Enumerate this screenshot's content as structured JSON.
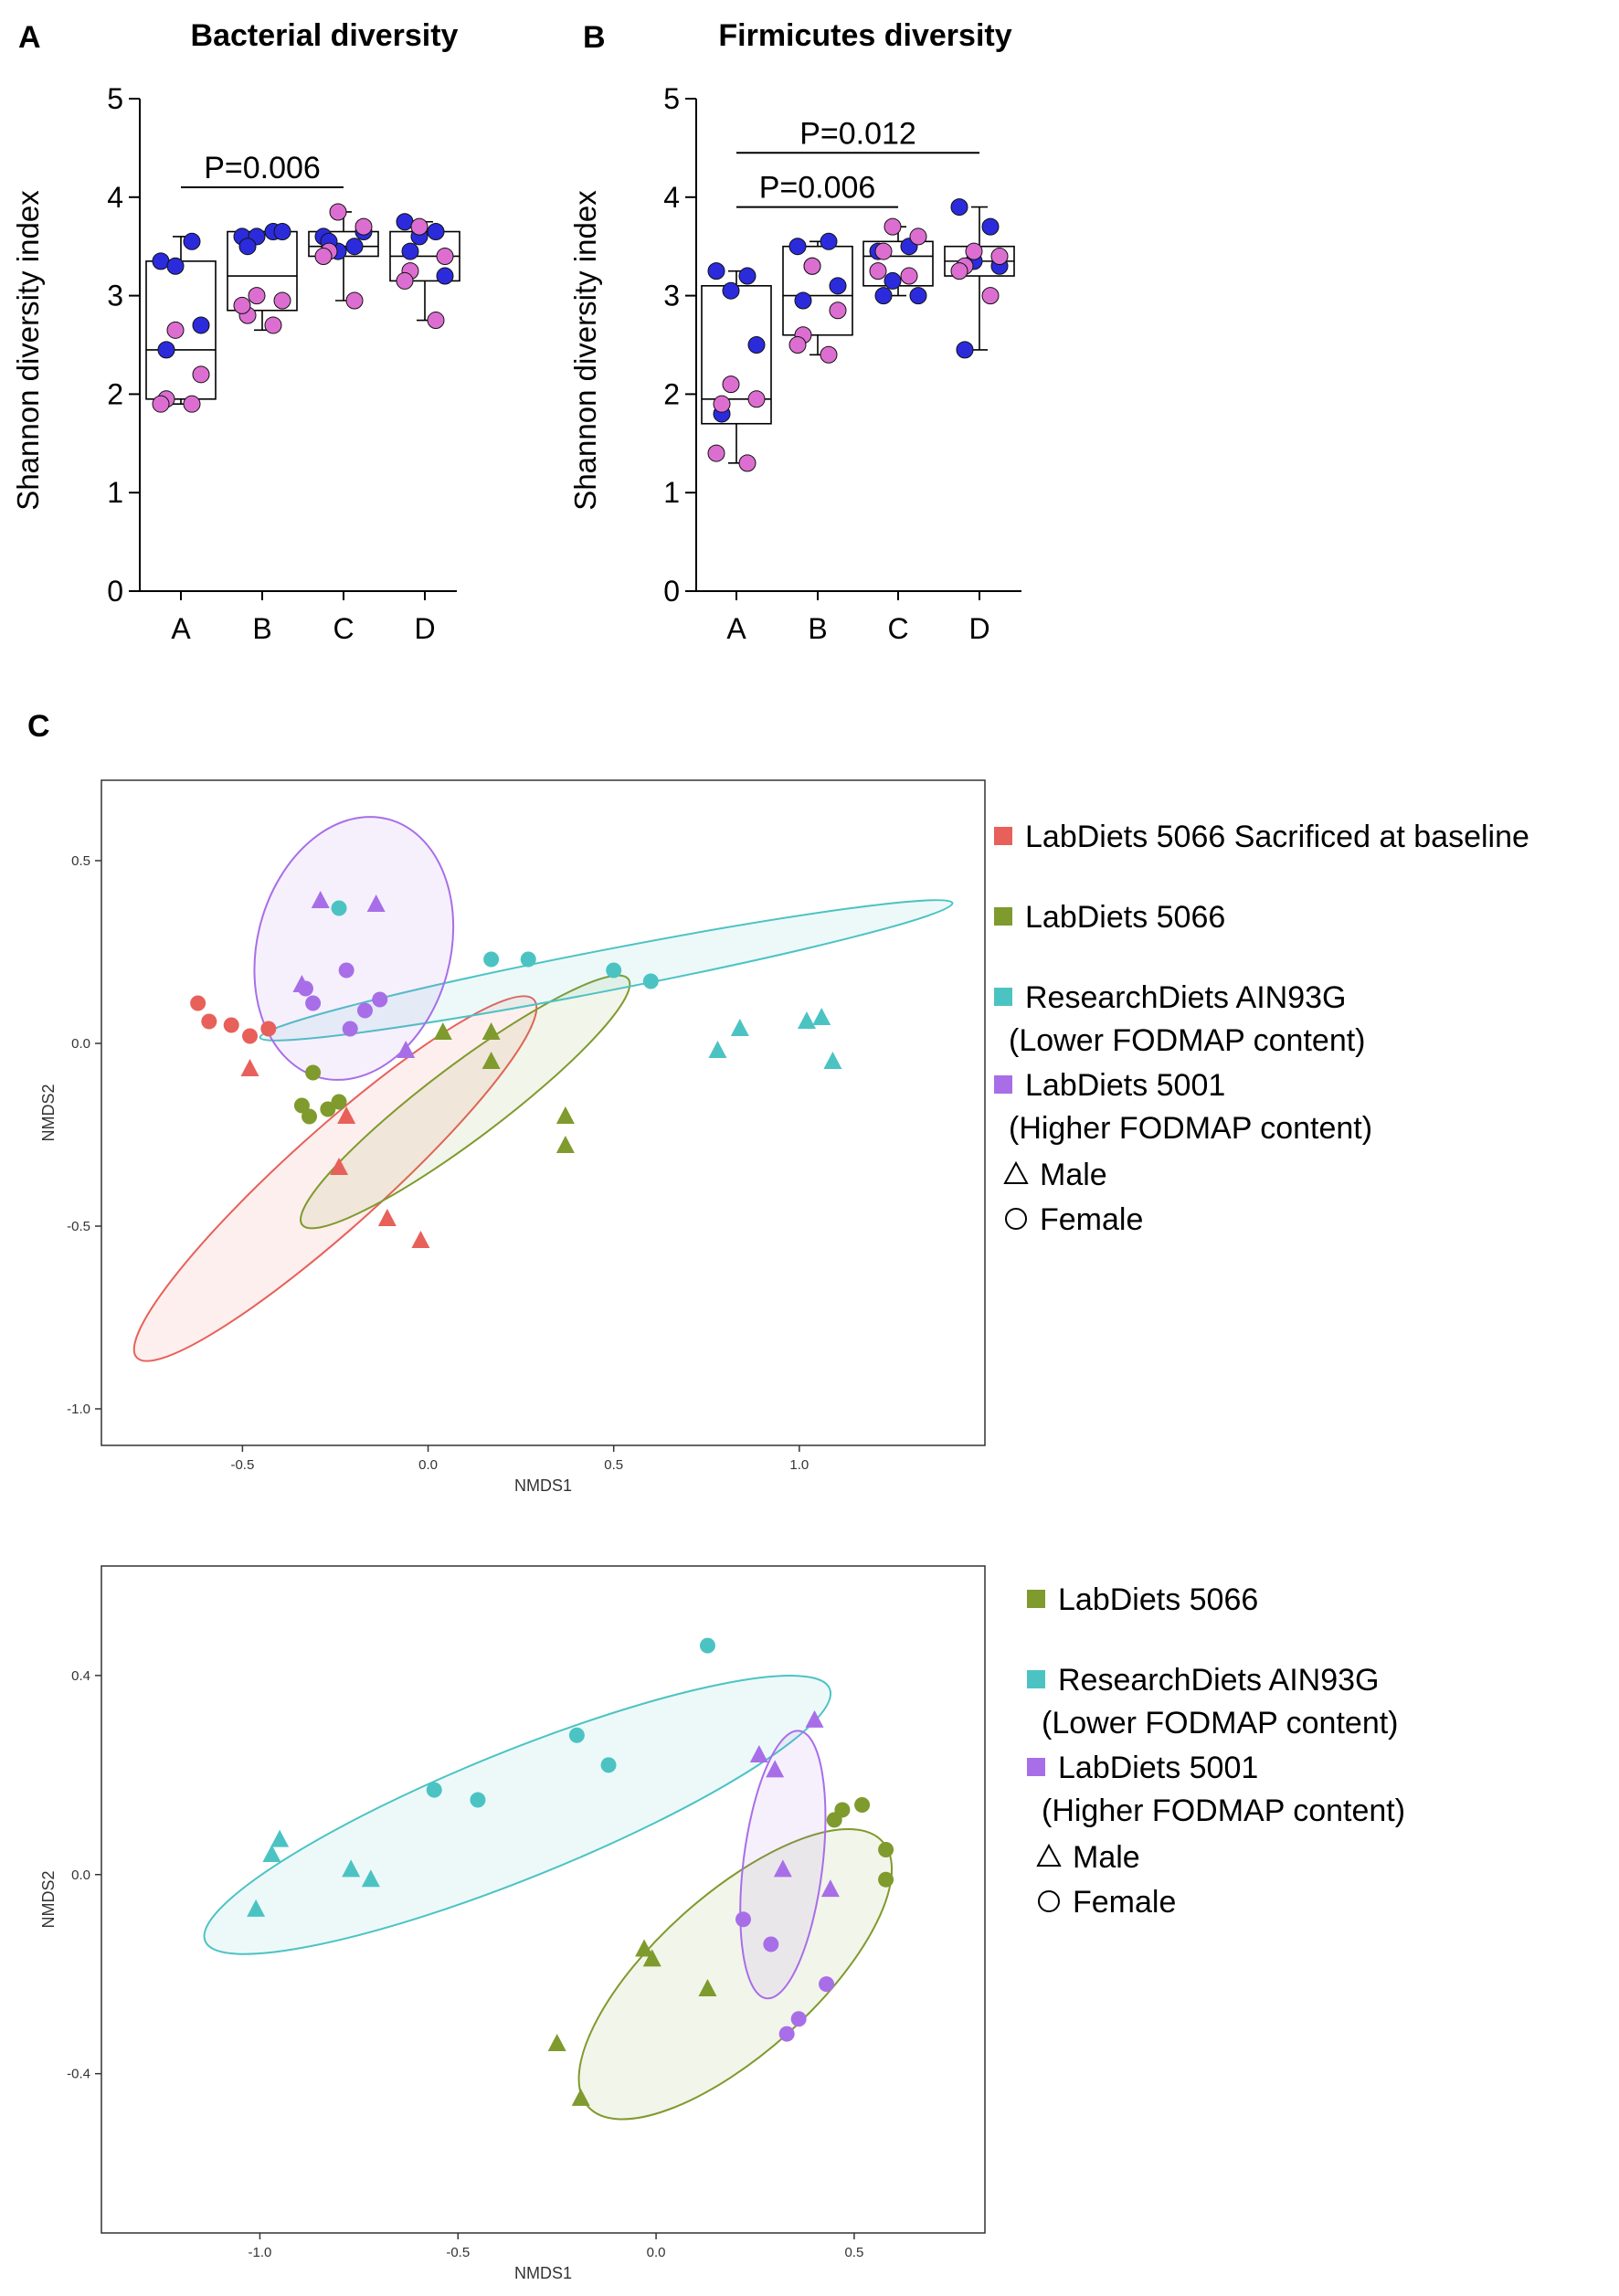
{
  "panels": {
    "A": "A",
    "B": "B",
    "C": "C"
  },
  "chart_data": [
    {
      "type": "box",
      "title": "Bacterial diversity",
      "ylabel": "Shannon diversity index",
      "categories": [
        "A",
        "B",
        "C",
        "D"
      ],
      "ylim": [
        0,
        5
      ],
      "yticks": [
        "0",
        "1",
        "2",
        "3",
        "4",
        "5"
      ],
      "boxes": [
        {
          "min": 1.9,
          "q1": 1.95,
          "median": 2.45,
          "q3": 3.35,
          "max": 3.6
        },
        {
          "min": 2.65,
          "q1": 2.85,
          "median": 3.2,
          "q3": 3.65,
          "max": 3.65
        },
        {
          "min": 2.95,
          "q1": 3.4,
          "median": 3.5,
          "q3": 3.65,
          "max": 3.85
        },
        {
          "min": 2.75,
          "q1": 3.15,
          "median": 3.4,
          "q3": 3.65,
          "max": 3.75
        }
      ],
      "points": [
        {
          "group": "A",
          "values_blue": [
            3.35,
            3.55,
            3.3,
            2.7,
            2.45
          ],
          "values_pink": [
            2.65,
            2.2,
            1.95,
            1.9,
            1.9
          ]
        },
        {
          "group": "B",
          "values_blue": [
            3.6,
            3.65,
            3.6,
            3.65,
            3.5
          ],
          "values_pink": [
            3.0,
            2.95,
            2.8,
            2.9,
            2.7
          ]
        },
        {
          "group": "C",
          "values_blue": [
            3.6,
            3.5,
            3.45,
            3.65,
            3.55
          ],
          "values_pink": [
            3.85,
            3.7,
            3.45,
            3.4,
            2.95
          ]
        },
        {
          "group": "D",
          "values_blue": [
            3.75,
            3.65,
            3.6,
            3.2,
            3.45
          ],
          "values_pink": [
            3.7,
            3.4,
            3.25,
            3.15,
            2.75
          ]
        }
      ],
      "annotations": [
        {
          "label": "P=0.006",
          "from": "A",
          "to": "C",
          "y": 4.1
        }
      ]
    },
    {
      "type": "box",
      "title": "Firmicutes diversity",
      "ylabel": "Shannon diversity index",
      "categories": [
        "A",
        "B",
        "C",
        "D"
      ],
      "ylim": [
        0,
        5
      ],
      "yticks": [
        "0",
        "1",
        "2",
        "3",
        "4",
        "5"
      ],
      "boxes": [
        {
          "min": 1.3,
          "q1": 1.7,
          "median": 1.95,
          "q3": 3.1,
          "max": 3.25
        },
        {
          "min": 2.4,
          "q1": 2.6,
          "median": 3.0,
          "q3": 3.5,
          "max": 3.55
        },
        {
          "min": 3.0,
          "q1": 3.1,
          "median": 3.4,
          "q3": 3.55,
          "max": 3.7
        },
        {
          "min": 2.45,
          "q1": 3.2,
          "median": 3.35,
          "q3": 3.5,
          "max": 3.9
        }
      ],
      "points": [
        {
          "group": "A",
          "values_blue": [
            3.25,
            3.2,
            3.05,
            2.5,
            1.8
          ],
          "values_pink": [
            2.1,
            1.95,
            1.9,
            1.4,
            1.3
          ]
        },
        {
          "group": "B",
          "values_blue": [
            3.5,
            3.55,
            3.3,
            3.1,
            2.95
          ],
          "values_pink": [
            3.3,
            2.85,
            2.6,
            2.5,
            2.4
          ]
        },
        {
          "group": "C",
          "values_blue": [
            3.45,
            3.5,
            3.15,
            3.0,
            3.0
          ],
          "values_pink": [
            3.7,
            3.6,
            3.45,
            3.25,
            3.2
          ]
        },
        {
          "group": "D",
          "values_blue": [
            3.9,
            3.7,
            3.35,
            3.3,
            2.45
          ],
          "values_pink": [
            3.45,
            3.4,
            3.3,
            3.25,
            3.0
          ]
        }
      ],
      "annotations": [
        {
          "label": "P=0.006",
          "from": "A",
          "to": "C",
          "y": 3.9
        },
        {
          "label": "P=0.012",
          "from": "A",
          "to": "D",
          "y": 4.45
        }
      ]
    },
    {
      "type": "scatter",
      "xlabel": "NMDS1",
      "ylabel": "NMDS2",
      "xlim": [
        -0.88,
        1.5
      ],
      "ylim": [
        -1.1,
        0.72
      ],
      "xticks": [
        -0.5,
        0.0,
        0.5,
        1.0
      ],
      "xtick_labels": [
        "-0.5",
        "0.0",
        "0.5",
        "1.0"
      ],
      "yticks": [
        0.5,
        0.0,
        -0.5,
        -1.0
      ],
      "ytick_labels": [
        "0.5",
        "0.0",
        "-0.5",
        "-1.0"
      ],
      "series": [
        {
          "name": "LabDiets 5066 Sacrificed at baseline",
          "color": "#e8605a",
          "points": [
            [
              -0.62,
              0.11,
              "circle"
            ],
            [
              -0.59,
              0.06,
              "circle"
            ],
            [
              -0.53,
              0.05,
              "circle"
            ],
            [
              -0.48,
              0.02,
              "circle"
            ],
            [
              -0.43,
              0.04,
              "circle"
            ],
            [
              -0.48,
              -0.07,
              "triangle"
            ],
            [
              -0.22,
              -0.2,
              "triangle"
            ],
            [
              -0.24,
              -0.34,
              "triangle"
            ],
            [
              -0.11,
              -0.48,
              "triangle"
            ],
            [
              -0.02,
              -0.54,
              "triangle"
            ]
          ],
          "ellipse": {
            "cx": -0.25,
            "cy": -0.37,
            "rx": 0.72,
            "ry": 0.13,
            "angle": -42
          }
        },
        {
          "name": "LabDiets 5066",
          "color": "#7f9a2d",
          "points": [
            [
              -0.34,
              -0.17,
              "circle"
            ],
            [
              -0.32,
              -0.2,
              "circle"
            ],
            [
              -0.27,
              -0.18,
              "circle"
            ],
            [
              -0.24,
              -0.16,
              "circle"
            ],
            [
              -0.31,
              -0.08,
              "circle"
            ],
            [
              0.04,
              0.03,
              "triangle"
            ],
            [
              0.17,
              0.03,
              "triangle"
            ],
            [
              0.17,
              -0.05,
              "triangle"
            ],
            [
              0.37,
              -0.2,
              "triangle"
            ],
            [
              0.37,
              -0.28,
              "triangle"
            ]
          ],
          "ellipse": {
            "cx": 0.1,
            "cy": -0.16,
            "rx": 0.55,
            "ry": 0.1,
            "angle": -37
          }
        },
        {
          "name": "ResearchDiets AIN93G",
          "name_line2": "(Lower FODMAP content)",
          "color": "#4cc3c3",
          "points": [
            [
              -0.24,
              0.37,
              "circle"
            ],
            [
              0.17,
              0.23,
              "circle"
            ],
            [
              0.27,
              0.23,
              "circle"
            ],
            [
              0.5,
              0.2,
              "circle"
            ],
            [
              0.6,
              0.17,
              "circle"
            ],
            [
              0.78,
              -0.02,
              "triangle"
            ],
            [
              0.84,
              0.04,
              "triangle"
            ],
            [
              1.02,
              0.06,
              "triangle"
            ],
            [
              1.06,
              0.07,
              "triangle"
            ],
            [
              1.09,
              -0.05,
              "triangle"
            ]
          ],
          "ellipse": {
            "cx": 0.48,
            "cy": 0.2,
            "rx": 0.95,
            "ry": 0.055,
            "angle": -11
          }
        },
        {
          "name": "LabDiets 5001",
          "name_line2": "(Higher FODMAP content)",
          "color": "#a86ee8",
          "points": [
            [
              -0.33,
              0.15,
              "circle"
            ],
            [
              -0.31,
              0.11,
              "circle"
            ],
            [
              -0.22,
              0.2,
              "circle"
            ],
            [
              -0.17,
              0.09,
              "circle"
            ],
            [
              -0.13,
              0.12,
              "circle"
            ],
            [
              -0.21,
              0.04,
              "circle"
            ],
            [
              -0.29,
              0.39,
              "triangle"
            ],
            [
              -0.14,
              0.38,
              "triangle"
            ],
            [
              -0.34,
              0.16,
              "triangle"
            ],
            [
              -0.06,
              -0.02,
              "triangle"
            ]
          ],
          "ellipse": {
            "cx": -0.2,
            "cy": 0.26,
            "rx": 0.36,
            "ry": 0.26,
            "angle": -75
          }
        }
      ],
      "legend": {
        "shapes": [
          "Male",
          "Female"
        ]
      }
    },
    {
      "type": "scatter",
      "xlabel": "NMDS1",
      "ylabel": "NMDS2",
      "xlim": [
        -1.4,
        0.83
      ],
      "ylim": [
        -0.72,
        0.62
      ],
      "xticks": [
        -1.0,
        -0.5,
        0.0,
        0.5
      ],
      "xtick_labels": [
        "-1.0",
        "-0.5",
        "0.0",
        "0.5"
      ],
      "yticks": [
        0.4,
        0.0,
        -0.4
      ],
      "ytick_labels": [
        "0.4",
        "0.0",
        "-0.4"
      ],
      "series": [
        {
          "name": "LabDiets 5066",
          "color": "#7f9a2d",
          "points": [
            [
              0.45,
              0.11,
              "circle"
            ],
            [
              0.47,
              0.13,
              "circle"
            ],
            [
              0.52,
              0.14,
              "circle"
            ],
            [
              0.58,
              0.05,
              "circle"
            ],
            [
              0.58,
              -0.01,
              "circle"
            ],
            [
              -0.03,
              -0.15,
              "triangle"
            ],
            [
              -0.01,
              -0.17,
              "triangle"
            ],
            [
              0.13,
              -0.23,
              "triangle"
            ],
            [
              -0.25,
              -0.34,
              "triangle"
            ],
            [
              -0.19,
              -0.45,
              "triangle"
            ]
          ],
          "ellipse": {
            "cx": 0.2,
            "cy": -0.2,
            "rx": 0.5,
            "ry": 0.2,
            "angle": -42
          }
        },
        {
          "name": "ResearchDiets AIN93G",
          "name_line2": "(Lower FODMAP content)",
          "color": "#4cc3c3",
          "points": [
            [
              0.13,
              0.46,
              "circle"
            ],
            [
              -0.2,
              0.28,
              "circle"
            ],
            [
              -0.12,
              0.22,
              "circle"
            ],
            [
              -0.56,
              0.17,
              "circle"
            ],
            [
              -0.45,
              0.15,
              "circle"
            ],
            [
              -0.95,
              0.07,
              "triangle"
            ],
            [
              -0.97,
              0.04,
              "triangle"
            ],
            [
              -0.77,
              0.01,
              "triangle"
            ],
            [
              -0.72,
              -0.01,
              "triangle"
            ],
            [
              -1.01,
              -0.07,
              "triangle"
            ]
          ],
          "ellipse": {
            "cx": -0.35,
            "cy": 0.12,
            "rx": 0.85,
            "ry": 0.16,
            "angle": -22
          }
        },
        {
          "name": "LabDiets 5001",
          "name_line2": "(Higher FODMAP content)",
          "color": "#a86ee8",
          "points": [
            [
              0.22,
              -0.09,
              "circle"
            ],
            [
              0.29,
              -0.14,
              "circle"
            ],
            [
              0.43,
              -0.22,
              "circle"
            ],
            [
              0.36,
              -0.29,
              "circle"
            ],
            [
              0.33,
              -0.32,
              "circle"
            ],
            [
              0.4,
              0.31,
              "triangle"
            ],
            [
              0.26,
              0.24,
              "triangle"
            ],
            [
              0.3,
              0.21,
              "triangle"
            ],
            [
              0.32,
              0.01,
              "triangle"
            ],
            [
              0.44,
              -0.03,
              "triangle"
            ]
          ],
          "ellipse": {
            "cx": 0.32,
            "cy": 0.02,
            "rx": 0.34,
            "ry": 0.1,
            "angle": -83
          }
        }
      ],
      "legend": {
        "shapes": [
          "Male",
          "Female"
        ]
      }
    }
  ]
}
